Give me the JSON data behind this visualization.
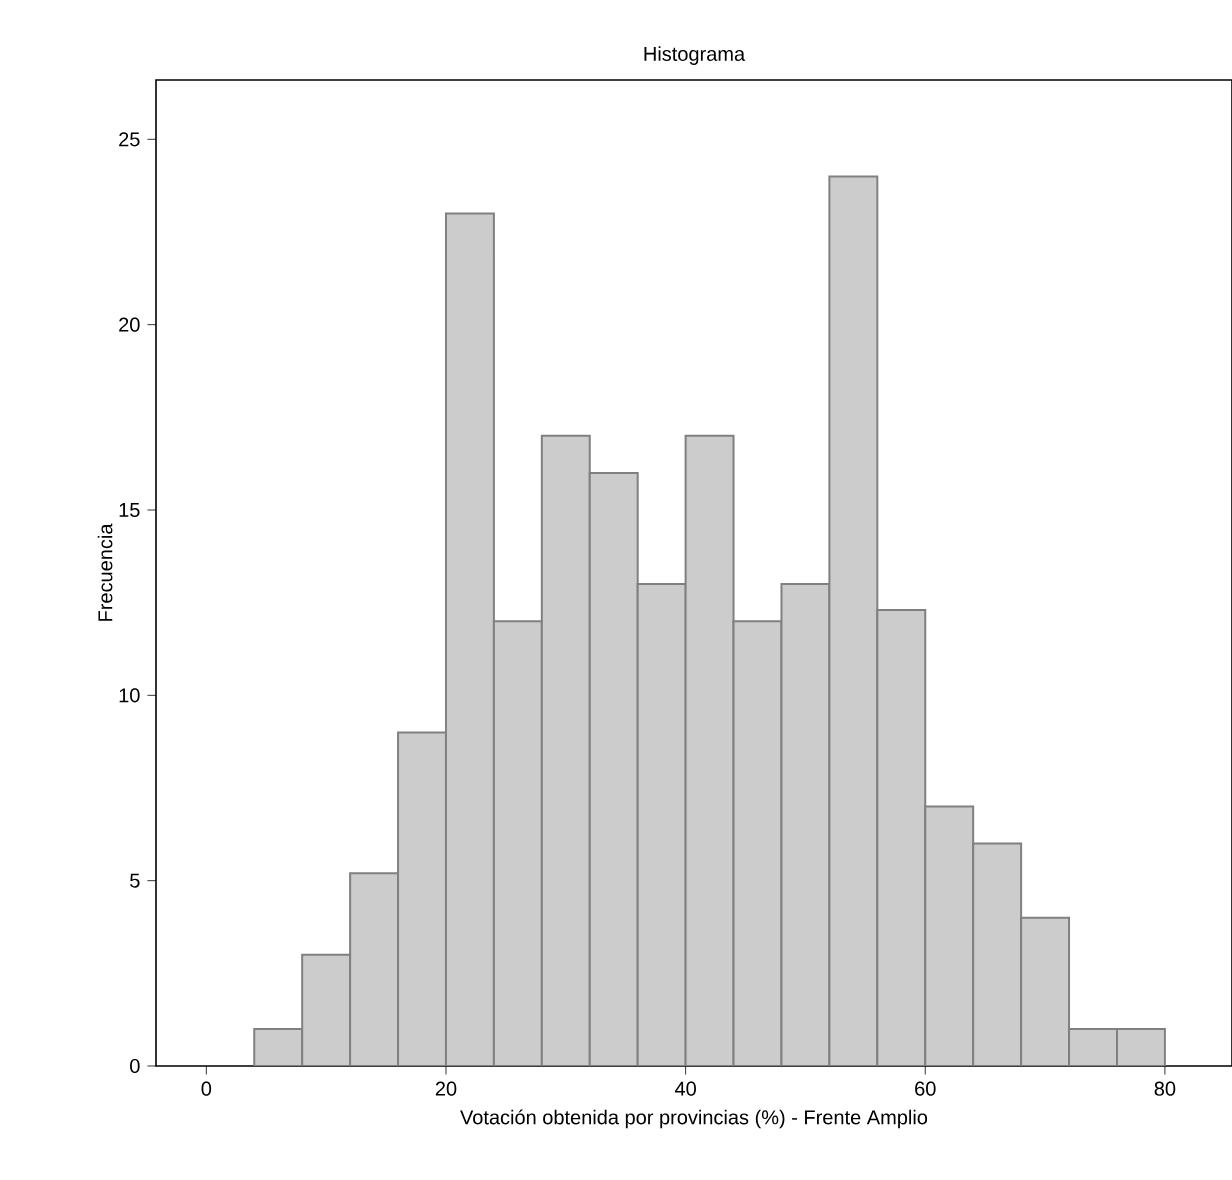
{
  "chart_data": {
    "type": "histogram",
    "title": "Histograma",
    "xlabel": "Votación obtenida por provincias (%) - Frente Amplio",
    "ylabel": "Frecuencia",
    "bins": [
      4,
      8,
      12,
      16,
      20,
      24,
      28,
      32,
      36,
      40,
      44,
      48,
      52,
      56,
      60,
      64,
      68,
      72,
      76,
      80
    ],
    "values": [
      1,
      3,
      5.2,
      9,
      23,
      12,
      17,
      16,
      13,
      17,
      12,
      13,
      24,
      12.3,
      7,
      6,
      4,
      1,
      1
    ],
    "color": "#cccccc",
    "xlim": [
      -4.2,
      85.6
    ],
    "ylim": [
      0,
      26.6
    ],
    "xticks": [
      0,
      20,
      40,
      60,
      80
    ],
    "yticks": [
      0,
      5,
      10,
      15,
      20,
      25
    ],
    "grid": false
  }
}
